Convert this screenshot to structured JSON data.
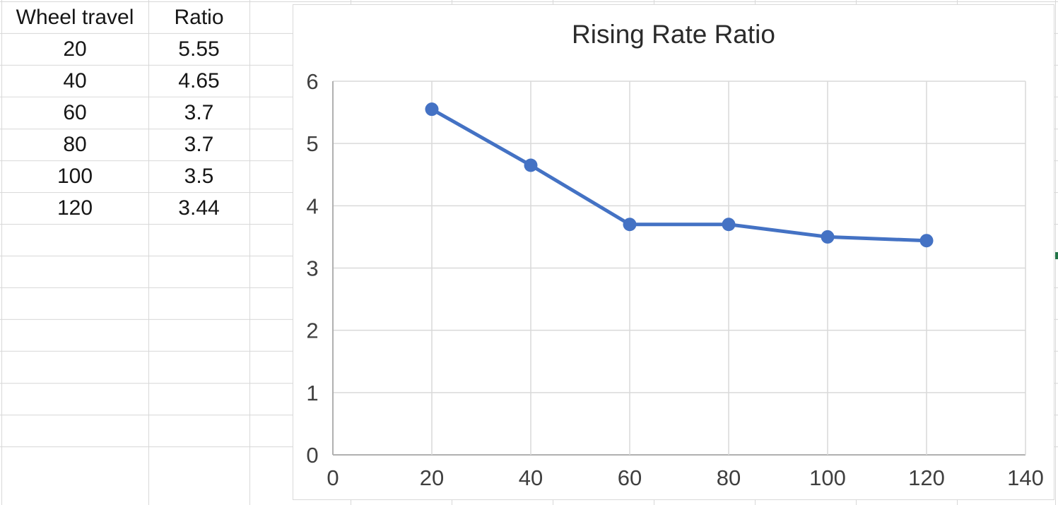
{
  "sheet": {
    "table": {
      "headers": [
        "Wheel travel",
        "Ratio"
      ],
      "rows": [
        {
          "travel": "20",
          "ratio": "5.55"
        },
        {
          "travel": "40",
          "ratio": "4.65"
        },
        {
          "travel": "60",
          "ratio": "3.7"
        },
        {
          "travel": "80",
          "ratio": "3.7"
        },
        {
          "travel": "100",
          "ratio": "3.5"
        },
        {
          "travel": "120",
          "ratio": "3.44"
        }
      ]
    }
  },
  "chart_data": {
    "type": "line",
    "title": "Rising Rate Ratio",
    "x": [
      20,
      40,
      60,
      80,
      100,
      120
    ],
    "y": [
      5.55,
      4.65,
      3.7,
      3.7,
      3.5,
      3.44
    ],
    "xlim": [
      0,
      140
    ],
    "ylim": [
      0,
      6
    ],
    "x_ticks": [
      0,
      20,
      40,
      60,
      80,
      100,
      120,
      140
    ],
    "y_ticks": [
      0,
      1,
      2,
      3,
      4,
      5,
      6
    ],
    "grid": true,
    "legend": "none",
    "line_color": "#4472C4",
    "marker": "circle",
    "gridline_color": "#d9d9d9",
    "axis_color": "#b0b0b0",
    "tick_label_color": "#3f3f3f",
    "title_color": "#2b2b2b"
  }
}
